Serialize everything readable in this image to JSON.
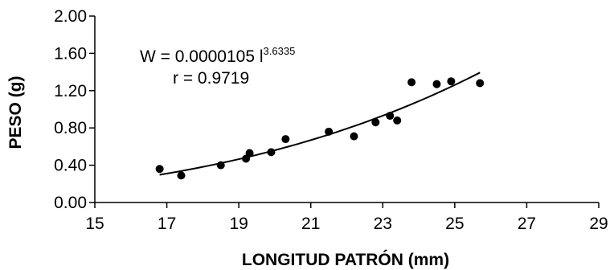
{
  "chart_data": {
    "type": "scatter",
    "xlabel": "LONGITUD PATRÓN  (mm)",
    "ylabel": "PESO (g)",
    "xlim": [
      15,
      29
    ],
    "ylim": [
      0,
      2.0
    ],
    "x_ticks": [
      15,
      17,
      19,
      21,
      23,
      25,
      27,
      29
    ],
    "y_ticks": [
      0.0,
      0.4,
      0.8,
      1.2,
      1.6,
      2.0
    ],
    "x_tick_labels": [
      "15",
      "17",
      "19",
      "21",
      "23",
      "25",
      "27",
      "29"
    ],
    "y_tick_labels": [
      "0.00",
      "0.40",
      "0.80",
      "1.20",
      "1.60",
      "2.00"
    ],
    "grid": false,
    "points": [
      {
        "x": 16.8,
        "y": 0.36
      },
      {
        "x": 17.4,
        "y": 0.29
      },
      {
        "x": 18.5,
        "y": 0.4
      },
      {
        "x": 19.2,
        "y": 0.47
      },
      {
        "x": 19.3,
        "y": 0.53
      },
      {
        "x": 19.9,
        "y": 0.54
      },
      {
        "x": 20.3,
        "y": 0.68
      },
      {
        "x": 21.5,
        "y": 0.76
      },
      {
        "x": 22.2,
        "y": 0.71
      },
      {
        "x": 22.8,
        "y": 0.86
      },
      {
        "x": 23.2,
        "y": 0.93
      },
      {
        "x": 23.4,
        "y": 0.88
      },
      {
        "x": 23.8,
        "y": 1.29
      },
      {
        "x": 24.5,
        "y": 1.27
      },
      {
        "x": 24.9,
        "y": 1.3
      },
      {
        "x": 25.7,
        "y": 1.28
      }
    ],
    "fit": {
      "model": "power",
      "coefficient": 1.05e-05,
      "exponent": 3.6335,
      "x_range": [
        16.8,
        25.7
      ]
    },
    "annotations": {
      "equation_main": "W = 0.0000105 l",
      "equation_exp": "3.6335",
      "r_text": "r = 0.9719"
    }
  }
}
